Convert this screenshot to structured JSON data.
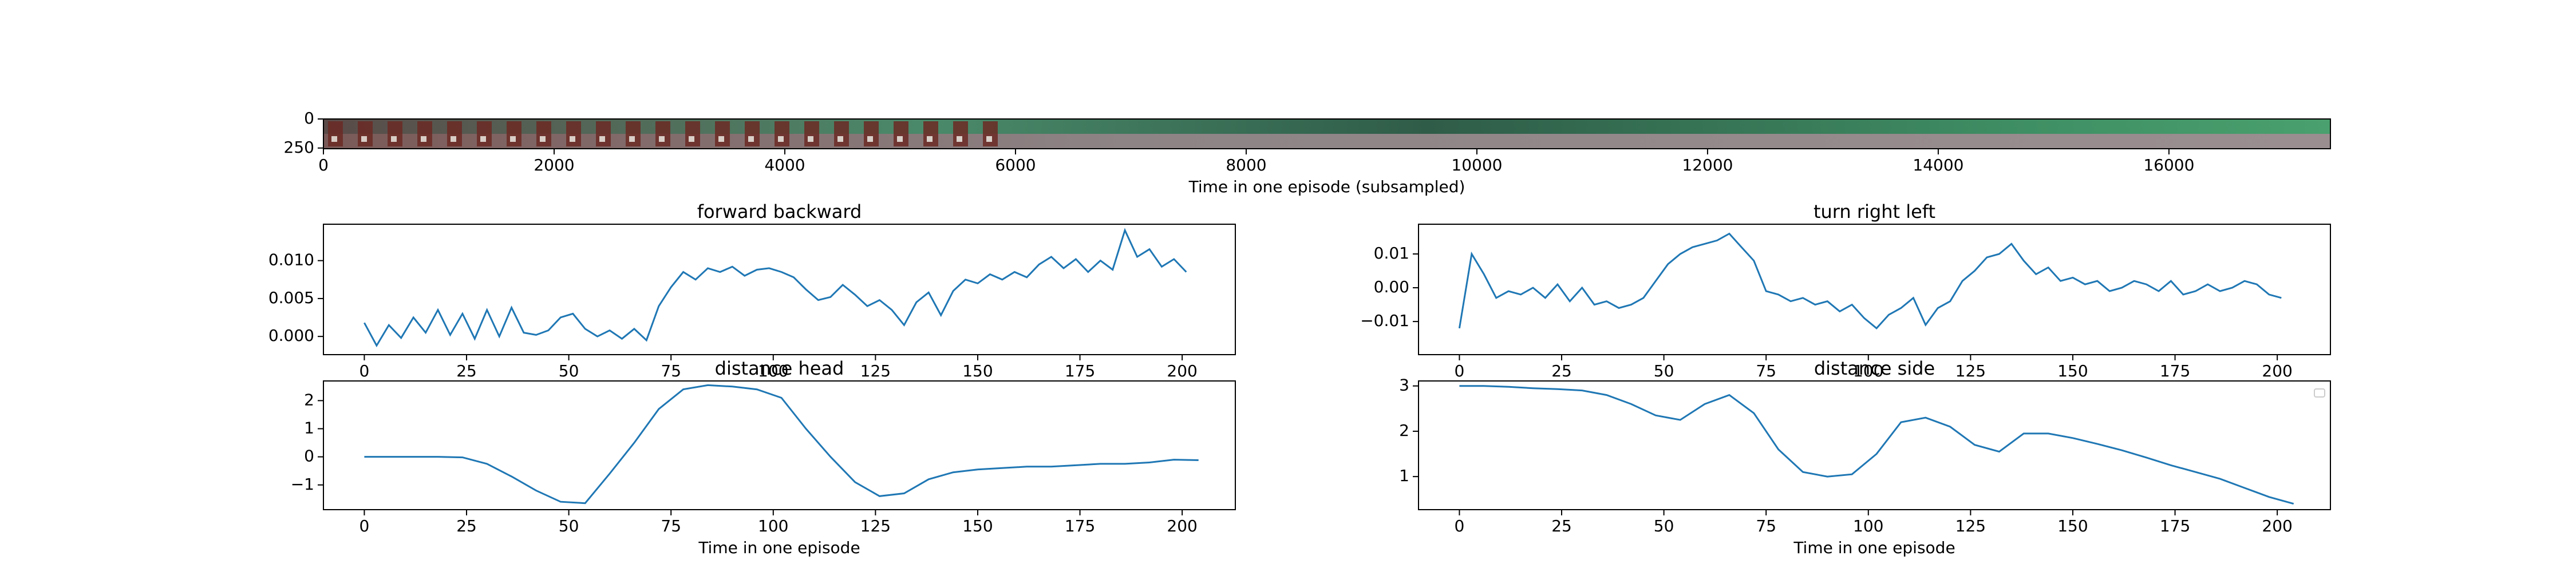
{
  "chart_data": [
    {
      "type": "image",
      "xlabel": "Time in one episode (subsampled)",
      "xlim": [
        0,
        17400
      ],
      "xticks": [
        0,
        2000,
        4000,
        6000,
        8000,
        10000,
        12000,
        14000,
        16000
      ],
      "ylim": [
        0,
        256
      ],
      "yticks": [
        0,
        250
      ],
      "yinvert": true
    },
    {
      "type": "line",
      "title": "forward backward",
      "xlabel": "Time in one episode",
      "color": "#1f77b4",
      "x": [
        0,
        3,
        6,
        9,
        12,
        15,
        18,
        21,
        24,
        27,
        30,
        33,
        36,
        39,
        42,
        45,
        48,
        51,
        54,
        57,
        60,
        63,
        66,
        69,
        72,
        75,
        78,
        81,
        84,
        87,
        90,
        93,
        96,
        99,
        102,
        105,
        108,
        111,
        114,
        117,
        120,
        123,
        126,
        129,
        132,
        135,
        138,
        141,
        144,
        147,
        150,
        153,
        156,
        159,
        162,
        165,
        168,
        171,
        174,
        177,
        180,
        183,
        186,
        189,
        192,
        195,
        198,
        201
      ],
      "values": [
        0.0018,
        -0.0012,
        0.0015,
        -0.0002,
        0.0025,
        0.0005,
        0.0035,
        0.0002,
        0.003,
        -0.0003,
        0.0035,
        0.0,
        0.0038,
        0.0005,
        0.0002,
        0.0008,
        0.0025,
        0.003,
        0.001,
        0.0,
        0.0008,
        -0.0003,
        0.001,
        -0.0005,
        0.004,
        0.0065,
        0.0085,
        0.0075,
        0.009,
        0.0085,
        0.0092,
        0.008,
        0.0088,
        0.009,
        0.0085,
        0.0078,
        0.0062,
        0.0048,
        0.0052,
        0.0068,
        0.0055,
        0.004,
        0.0048,
        0.0035,
        0.0015,
        0.0045,
        0.0058,
        0.0028,
        0.006,
        0.0075,
        0.007,
        0.0082,
        0.0075,
        0.0085,
        0.0078,
        0.0095,
        0.0105,
        0.009,
        0.0102,
        0.0085,
        0.01,
        0.0088,
        0.014,
        0.0105,
        0.0115,
        0.0092,
        0.0102,
        0.0085
      ],
      "xlim": [
        -10,
        213
      ],
      "xticks": [
        0,
        25,
        50,
        75,
        100,
        125,
        150,
        175,
        200
      ],
      "ylim": [
        -0.0024,
        0.0148
      ],
      "yticks": [
        {
          "value": 0.0,
          "label": "0.000"
        },
        {
          "value": 0.005,
          "label": "0.005"
        },
        {
          "value": 0.01,
          "label": "0.010"
        }
      ]
    },
    {
      "type": "line",
      "title": "turn right left",
      "xlabel": "Time in one episode",
      "color": "#1f77b4",
      "x": [
        0,
        3,
        6,
        9,
        12,
        15,
        18,
        21,
        24,
        27,
        30,
        33,
        36,
        39,
        42,
        45,
        48,
        51,
        54,
        57,
        60,
        63,
        66,
        69,
        72,
        75,
        78,
        81,
        84,
        87,
        90,
        93,
        96,
        99,
        102,
        105,
        108,
        111,
        114,
        117,
        120,
        123,
        126,
        129,
        132,
        135,
        138,
        141,
        144,
        147,
        150,
        153,
        156,
        159,
        162,
        165,
        168,
        171,
        174,
        177,
        180,
        183,
        186,
        189,
        192,
        195,
        198,
        201
      ],
      "values": [
        -0.012,
        0.01,
        0.004,
        -0.003,
        -0.001,
        -0.002,
        0.0,
        -0.003,
        0.001,
        -0.004,
        0.0,
        -0.005,
        -0.004,
        -0.006,
        -0.005,
        -0.003,
        0.002,
        0.007,
        0.01,
        0.012,
        0.013,
        0.014,
        0.016,
        0.012,
        0.008,
        -0.001,
        -0.002,
        -0.004,
        -0.003,
        -0.005,
        -0.004,
        -0.007,
        -0.005,
        -0.009,
        -0.012,
        -0.008,
        -0.006,
        -0.003,
        -0.011,
        -0.006,
        -0.004,
        0.002,
        0.005,
        0.009,
        0.01,
        0.013,
        0.008,
        0.004,
        0.006,
        0.002,
        0.003,
        0.001,
        0.002,
        -0.001,
        0.0,
        0.002,
        0.001,
        -0.001,
        0.002,
        -0.002,
        -0.001,
        0.001,
        -0.001,
        0.0,
        0.002,
        0.001,
        -0.002,
        -0.003
      ],
      "xlim": [
        -10,
        213
      ],
      "xticks": [
        0,
        25,
        50,
        75,
        100,
        125,
        150,
        175,
        200
      ],
      "ylim": [
        -0.0198,
        0.0188
      ],
      "yticks": [
        {
          "value": -0.01,
          "label": "−0.01"
        },
        {
          "value": 0.0,
          "label": "0.00"
        },
        0.01
      ]
    },
    {
      "type": "line",
      "title": "distance head",
      "xlabel": "Time in one episode",
      "color": "#1f77b4",
      "x": [
        0,
        6,
        12,
        18,
        24,
        30,
        36,
        42,
        48,
        54,
        60,
        66,
        72,
        78,
        84,
        90,
        96,
        102,
        108,
        114,
        120,
        126,
        132,
        138,
        144,
        150,
        156,
        162,
        168,
        174,
        180,
        186,
        192,
        198,
        204
      ],
      "values": [
        0,
        0,
        0,
        0,
        -0.02,
        -0.25,
        -0.7,
        -1.2,
        -1.6,
        -1.65,
        -0.6,
        0.5,
        1.7,
        2.4,
        2.55,
        2.5,
        2.4,
        2.1,
        1.0,
        0.0,
        -0.9,
        -1.4,
        -1.3,
        -0.8,
        -0.55,
        -0.45,
        -0.4,
        -0.35,
        -0.35,
        -0.3,
        -0.25,
        -0.25,
        -0.2,
        -0.1,
        -0.12
      ],
      "xlim": [
        -10,
        213
      ],
      "xticks": [
        0,
        25,
        50,
        75,
        100,
        125,
        150,
        175,
        200
      ],
      "ylim": [
        -1.88,
        2.7
      ],
      "yticks": [
        {
          "value": -1,
          "label": "−1"
        },
        0,
        1,
        2
      ]
    },
    {
      "type": "line",
      "title": "distance side",
      "xlabel": "Time in one episode",
      "color": "#1f77b4",
      "x": [
        0,
        6,
        12,
        18,
        24,
        30,
        36,
        42,
        48,
        54,
        60,
        66,
        72,
        78,
        84,
        90,
        96,
        102,
        108,
        114,
        120,
        126,
        132,
        138,
        144,
        150,
        156,
        162,
        168,
        174,
        180,
        186,
        192,
        198,
        204
      ],
      "values": [
        3.0,
        3.0,
        2.98,
        2.95,
        2.93,
        2.9,
        2.8,
        2.6,
        2.35,
        2.25,
        2.6,
        2.8,
        2.4,
        1.6,
        1.1,
        1.0,
        1.05,
        1.5,
        2.2,
        2.3,
        2.1,
        1.7,
        1.55,
        1.95,
        1.95,
        1.85,
        1.72,
        1.58,
        1.42,
        1.25,
        1.1,
        0.95,
        0.75,
        0.55,
        0.4
      ],
      "xlim": [
        -10,
        213
      ],
      "xticks": [
        0,
        25,
        50,
        75,
        100,
        125,
        150,
        175,
        200
      ],
      "ylim": [
        0.27,
        3.11
      ],
      "yticks": [
        1,
        2,
        3
      ],
      "legend_box": true
    }
  ]
}
